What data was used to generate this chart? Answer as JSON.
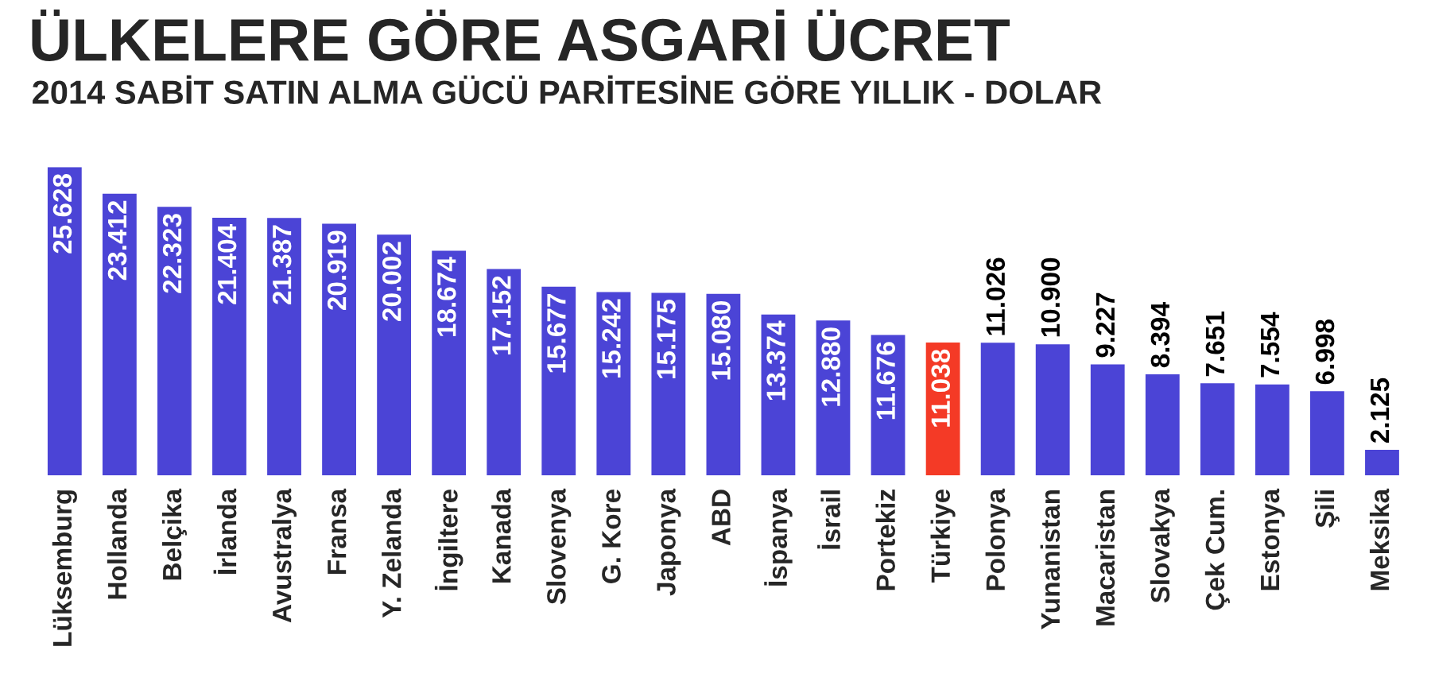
{
  "chart_data": {
    "type": "bar",
    "title": "ÜLKELERE GÖRE ASGARİ ÜCRET",
    "subtitle": "2014 SABİT SATIN ALMA GÜCÜ PARİTESİNE GÖRE YILLIK - DOLAR",
    "categories": [
      "Lüksemburg",
      "Hollanda",
      "Belçika",
      "İrlanda",
      "Avustralya",
      "Fransa",
      "Y. Zelanda",
      "İngiltere",
      "Kanada",
      "Slovenya",
      "G. Kore",
      "Japonya",
      "ABD",
      "İspanya",
      "İsrail",
      "Portekiz",
      "Türkiye",
      "Polonya",
      "Yunanistan",
      "Macaristan",
      "Slovakya",
      "Çek Cum.",
      "Estonya",
      "Şili",
      "Meksika"
    ],
    "values": [
      25628,
      23412,
      22323,
      21404,
      21387,
      20919,
      20002,
      18674,
      17152,
      15677,
      15242,
      15175,
      15080,
      13374,
      12880,
      11676,
      11038,
      11026,
      10900,
      9227,
      8394,
      7651,
      7554,
      6998,
      2125
    ],
    "value_labels": [
      "25.628",
      "23.412",
      "22.323",
      "21.404",
      "21.387",
      "20.919",
      "20.002",
      "18.674",
      "17.152",
      "15.677",
      "15.242",
      "15.175",
      "15.080",
      "13.374",
      "12.880",
      "11.676",
      "11.038",
      "11.026",
      "10.900",
      "9.227",
      "8.394",
      "7.651",
      "7.554",
      "6.998",
      "2.125"
    ],
    "colors": [
      "#4b44d6",
      "#4b44d6",
      "#4b44d6",
      "#4b44d6",
      "#4b44d6",
      "#4b44d6",
      "#4b44d6",
      "#4b44d6",
      "#4b44d6",
      "#4b44d6",
      "#4b44d6",
      "#4b44d6",
      "#4b44d6",
      "#4b44d6",
      "#4b44d6",
      "#4b44d6",
      "#f43a26",
      "#4b44d6",
      "#4b44d6",
      "#4b44d6",
      "#4b44d6",
      "#4b44d6",
      "#4b44d6",
      "#4b44d6",
      "#4b44d6"
    ],
    "grid": false,
    "legend": false
  }
}
